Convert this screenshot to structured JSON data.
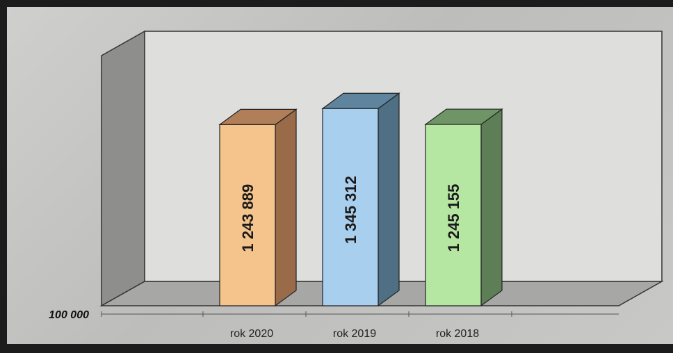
{
  "chart_data": {
    "type": "bar",
    "three_d": true,
    "categories": [
      "rok 2020",
      "rok 2019",
      "rok 2018"
    ],
    "values": [
      1243889,
      1345312,
      1245155
    ],
    "value_labels": [
      "1 243 889",
      "1 345 312",
      "1 245 155"
    ],
    "axis_min_label": "100 000",
    "ylim": [
      100000,
      1680000
    ],
    "grid": false,
    "legend": "none",
    "colors": {
      "bars": [
        {
          "front": "#f5c48c",
          "side": "#9a6b48",
          "top": "#b07e58"
        },
        {
          "front": "#a9cfee",
          "side": "#4f6f84",
          "top": "#5f849e"
        },
        {
          "front": "#b6e7a2",
          "side": "#5e7e57",
          "top": "#6f9466"
        }
      ],
      "back_wall": "#dededc",
      "left_wall": "#8e8e8c",
      "floor": "#a7a7a5"
    }
  }
}
